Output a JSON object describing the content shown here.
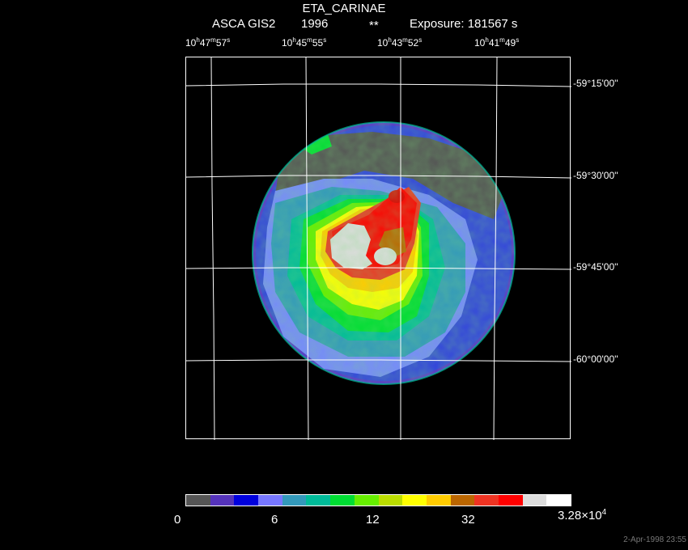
{
  "header": {
    "object_name": "ETA_CARINAE",
    "instrument": "ASCA GIS2",
    "year": "1996",
    "marker": "**",
    "exposure": "Exposure: 181567 s"
  },
  "ra_labels": [
    {
      "h": "10",
      "m": "47",
      "s": "57"
    },
    {
      "h": "10",
      "m": "45",
      "s": "55"
    },
    {
      "h": "10",
      "m": "43",
      "s": "52"
    },
    {
      "h": "10",
      "m": "41",
      "s": "49"
    }
  ],
  "dec_labels": [
    "-59°15'00''",
    "-59°30'00''",
    "-59°45'00''",
    "-60°00'00''"
  ],
  "colorbar": {
    "colors": [
      "#555555",
      "#5533bb",
      "#0000dd",
      "#7777ff",
      "#3399bb",
      "#00bb99",
      "#00dd33",
      "#66ee00",
      "#bbdd00",
      "#ffff00",
      "#ffcc00",
      "#bb6600",
      "#ee3322",
      "#ff0000",
      "#dddddd",
      "#ffffff"
    ],
    "tick_labels": {
      "t0": "0",
      "t1": "6",
      "t2": "12",
      "t3": "32",
      "t4_base": "3.28×10",
      "t4_exp": "4"
    }
  },
  "timestamp": "2-Apr-1998 23:55"
}
